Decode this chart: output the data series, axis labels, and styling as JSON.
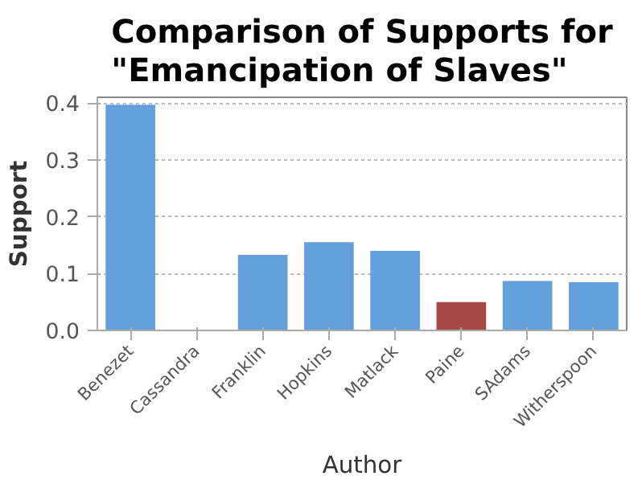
{
  "chart_data": {
    "type": "bar",
    "title": "Comparison of Supports for\n\"Emancipation of Slaves\"",
    "xlabel": "Author",
    "ylabel": "Support",
    "categories": [
      "Benezet",
      "Cassandra",
      "Franklin",
      "Hopkins",
      "Matlack",
      "Paine",
      "SAdams",
      "Witherspoon"
    ],
    "values": [
      0.397,
      0,
      0.133,
      0.155,
      0.14,
      0.05,
      0.087,
      0.085
    ],
    "colors": [
      "#64a0dc",
      "#64a0dc",
      "#64a0dc",
      "#64a0dc",
      "#64a0dc",
      "#a84a44",
      "#64a0dc",
      "#64a0dc"
    ],
    "ylim": [
      0,
      0.41
    ],
    "yticks": [
      {
        "value": 0,
        "label": "0.0"
      },
      {
        "value": 0.1,
        "label": "0.1"
      },
      {
        "value": 0.2,
        "label": "0.2"
      },
      {
        "value": 0.3,
        "label": "0.3"
      },
      {
        "value": 0.4,
        "label": "0.4"
      }
    ],
    "grid": "y"
  }
}
